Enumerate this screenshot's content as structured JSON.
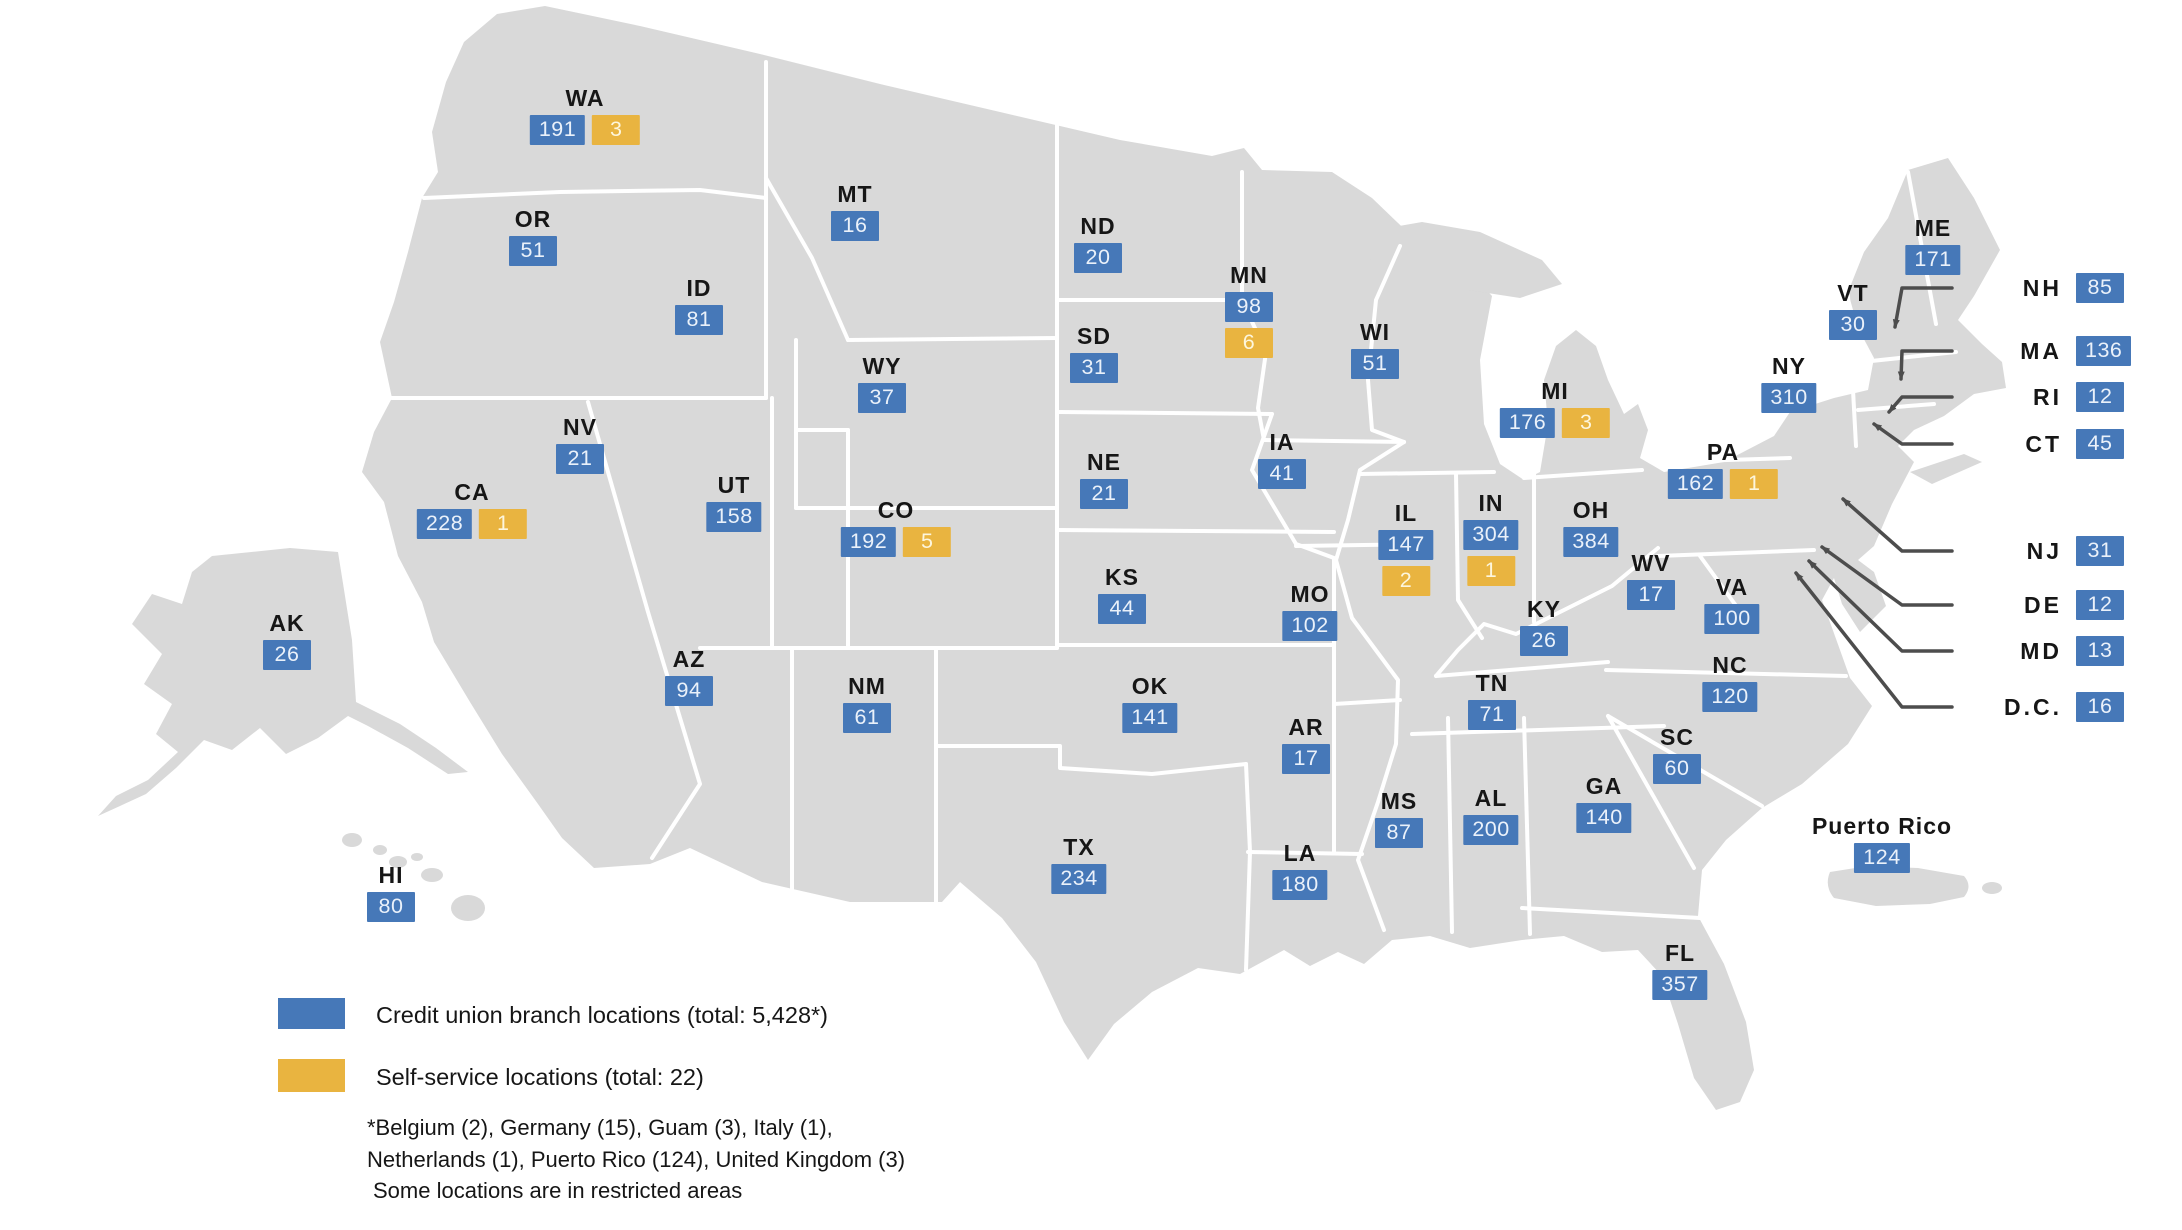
{
  "colors": {
    "branch_badge": "#4678B8",
    "self_service_badge": "#E9B440",
    "land": "#D9D9D9",
    "callout_line": "#4D4D4D"
  },
  "legend": {
    "branch_label": "Credit union branch locations (total: 5,428*)",
    "self_service_label": "Self-service locations (total: 22)",
    "footnote_line1": "*Belgium (2), Germany (15), Guam (3), Italy (1),",
    "footnote_line2": "Netherlands (1), Puerto Rico (124), United Kingdom (3)",
    "footnote_line3": "Some locations are in restricted areas"
  },
  "states": [
    {
      "code": "WA",
      "branches": 191,
      "self_service": 3
    },
    {
      "code": "OR",
      "branches": 51
    },
    {
      "code": "ID",
      "branches": 81
    },
    {
      "code": "MT",
      "branches": 16
    },
    {
      "code": "WY",
      "branches": 37
    },
    {
      "code": "NV",
      "branches": 21
    },
    {
      "code": "UT",
      "branches": 158
    },
    {
      "code": "CA",
      "branches": 228,
      "self_service": 1
    },
    {
      "code": "CO",
      "branches": 192,
      "self_service": 5
    },
    {
      "code": "AZ",
      "branches": 94
    },
    {
      "code": "NM",
      "branches": 61
    },
    {
      "code": "AK",
      "branches": 26
    },
    {
      "code": "HI",
      "branches": 80
    },
    {
      "code": "ND",
      "branches": 20
    },
    {
      "code": "SD",
      "branches": 31
    },
    {
      "code": "NE",
      "branches": 21
    },
    {
      "code": "KS",
      "branches": 44
    },
    {
      "code": "OK",
      "branches": 141
    },
    {
      "code": "TX",
      "branches": 234
    },
    {
      "code": "MN",
      "branches": 98,
      "self_service": 6
    },
    {
      "code": "IA",
      "branches": 41
    },
    {
      "code": "MO",
      "branches": 102
    },
    {
      "code": "AR",
      "branches": 17
    },
    {
      "code": "LA",
      "branches": 180
    },
    {
      "code": "WI",
      "branches": 51
    },
    {
      "code": "IL",
      "branches": 147,
      "self_service": 2
    },
    {
      "code": "MS",
      "branches": 87
    },
    {
      "code": "MI",
      "branches": 176,
      "self_service": 3
    },
    {
      "code": "IN",
      "branches": 304,
      "self_service": 1
    },
    {
      "code": "OH",
      "branches": 384
    },
    {
      "code": "KY",
      "branches": 26
    },
    {
      "code": "TN",
      "branches": 71
    },
    {
      "code": "AL",
      "branches": 200
    },
    {
      "code": "GA",
      "branches": 140
    },
    {
      "code": "FL",
      "branches": 357
    },
    {
      "code": "WV",
      "branches": 17
    },
    {
      "code": "VA",
      "branches": 100
    },
    {
      "code": "NC",
      "branches": 120
    },
    {
      "code": "SC",
      "branches": 60
    },
    {
      "code": "NY",
      "branches": 310
    },
    {
      "code": "PA",
      "branches": 162,
      "self_service": 1
    },
    {
      "code": "VT",
      "branches": 30
    },
    {
      "code": "ME",
      "branches": 171
    },
    {
      "code": "PR",
      "label": "Puerto Rico",
      "branches": 124
    }
  ],
  "callouts": [
    {
      "code": "NH",
      "branches": 85
    },
    {
      "code": "MA",
      "branches": 136
    },
    {
      "code": "RI",
      "branches": 12
    },
    {
      "code": "CT",
      "branches": 45
    },
    {
      "code": "NJ",
      "branches": 31
    },
    {
      "code": "DE",
      "branches": 12
    },
    {
      "code": "MD",
      "branches": 13
    },
    {
      "code": "D.C.",
      "branches": 16
    }
  ]
}
